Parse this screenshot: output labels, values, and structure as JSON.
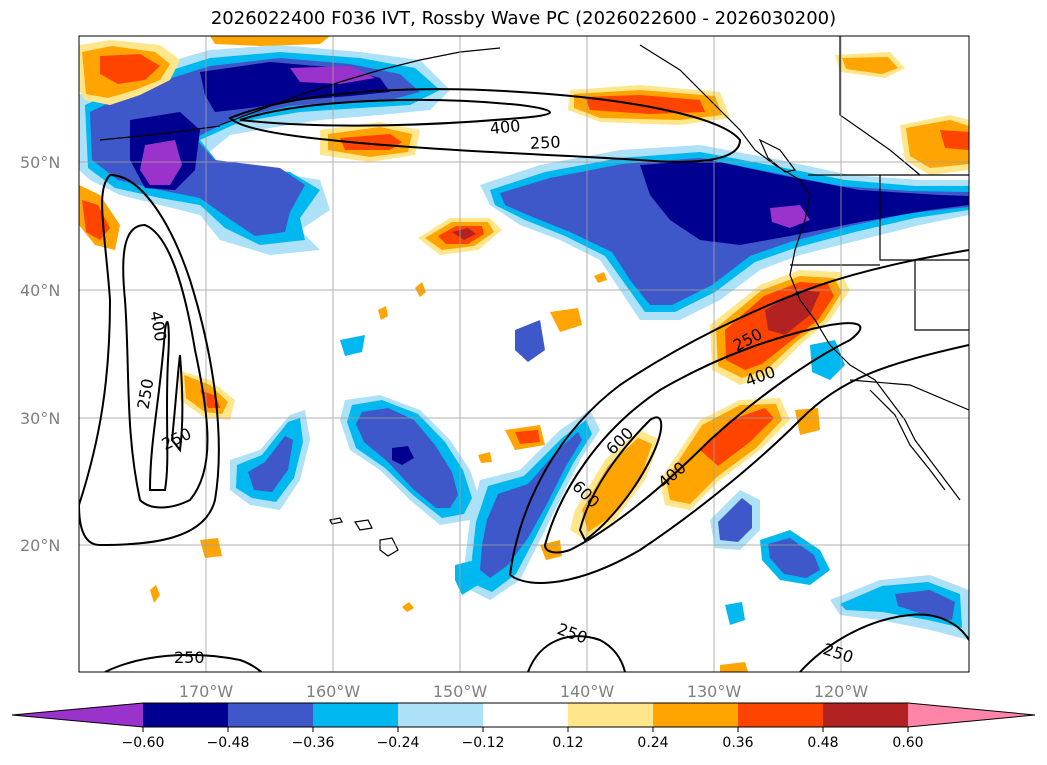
{
  "title": "2026022400 F036 IVT, Rossby Wave PC (2026022600 - 2026030200)",
  "lat_labels": [
    "50°N",
    "40°N",
    "30°N",
    "20°N"
  ],
  "lon_labels": [
    "170°W",
    "160°W",
    "150°W",
    "140°W",
    "130°W",
    "120°W"
  ],
  "colorbar": {
    "ticks": [
      "−0.60",
      "−0.48",
      "−0.36",
      "−0.24",
      "−0.12",
      "0.12",
      "0.24",
      "0.36",
      "0.48",
      "0.60"
    ],
    "colors": [
      "#9933cc",
      "#000090",
      "#3e57c9",
      "#00b8f0",
      "#ade1f7",
      "#ffffff",
      "#ffe68a",
      "#ffa400",
      "#ff4400",
      "#b22222",
      "#ff85a8"
    ]
  },
  "contour_labels": [
    "400",
    "250",
    "400",
    "250",
    "250",
    "600",
    "250",
    "400",
    "400",
    "600",
    "250",
    "250",
    "250"
  ],
  "colors": {
    "coastline": "#000000",
    "contour": "#000000",
    "grid": "#a0a0a0"
  }
}
